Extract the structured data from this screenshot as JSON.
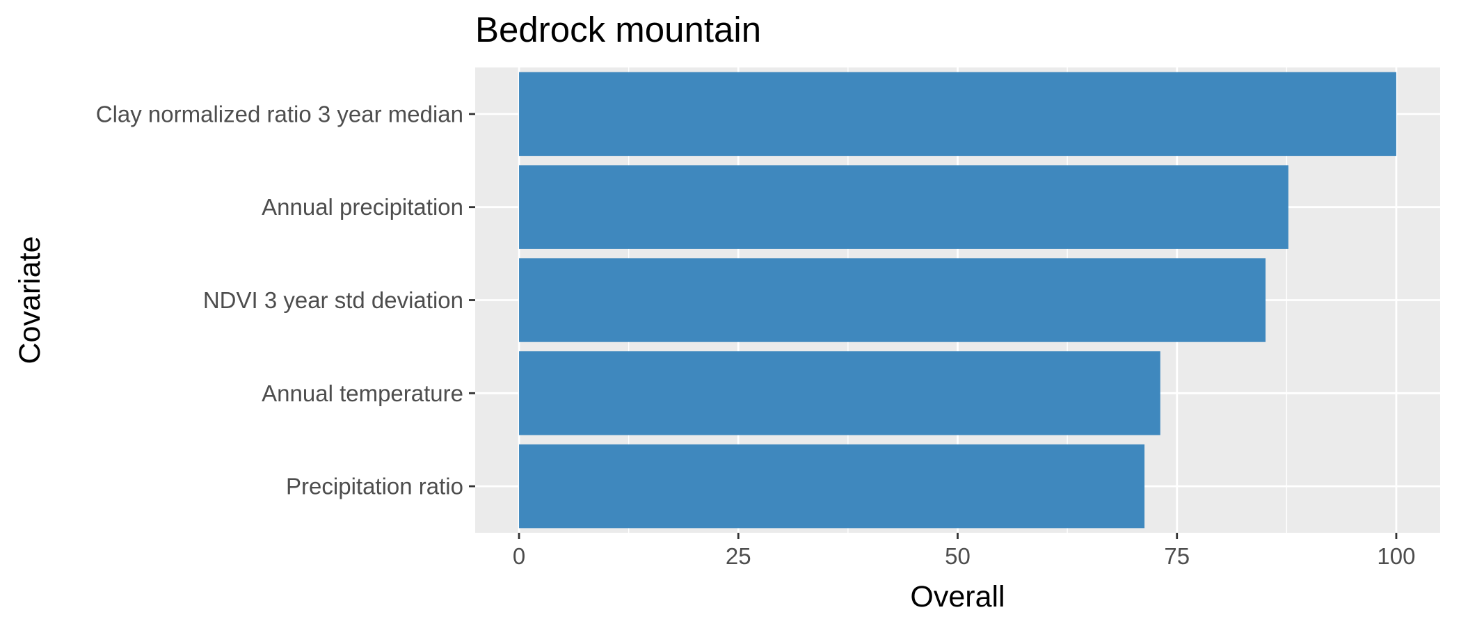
{
  "chart_data": {
    "type": "bar",
    "orientation": "horizontal",
    "title": "Bedrock mountain",
    "xlabel": "Overall",
    "ylabel": "Covariate",
    "categories": [
      "Clay normalized ratio 3 year median",
      "Annual precipitation",
      "NDVI 3 year std deviation",
      "Annual temperature",
      "Precipitation ratio"
    ],
    "values": [
      100,
      87.7,
      85.1,
      73.1,
      71.3
    ],
    "xlim": [
      -5,
      105
    ],
    "xticks": [
      0,
      25,
      50,
      75,
      100
    ],
    "grid": true,
    "legend": "none",
    "colors": {
      "bar": "#3f88be",
      "panel_background": "#ebebeb",
      "grid": "#ffffff"
    }
  }
}
